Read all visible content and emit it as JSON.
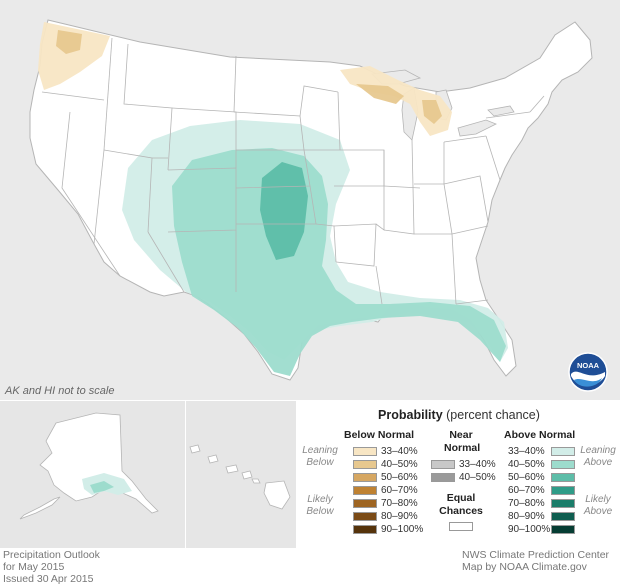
{
  "map": {
    "scale_note": "AK and HI not to scale",
    "logo_text": "NOAA",
    "colors": {
      "background": "#eaeaea",
      "land": "#ffffff",
      "border": "#b5b5b5",
      "below_33_40": "#f8e6c4",
      "below_40_50": "#e7c88f",
      "above_33_40": "#d2ede8",
      "above_40_50": "#9ddccd",
      "above_50_60": "#5dbda8"
    }
  },
  "legend": {
    "title_bold": "Probability",
    "title_rest": "(percent chance)",
    "below": {
      "heading": "Below Normal",
      "side_leaning": [
        "Leaning",
        "Below"
      ],
      "side_likely": [
        "Likely",
        "Below"
      ],
      "rows": [
        {
          "label": "33–40%",
          "color": "#f8e6c4"
        },
        {
          "label": "40–50%",
          "color": "#e7c88f"
        },
        {
          "label": "50–60%",
          "color": "#d6a762"
        },
        {
          "label": "60–70%",
          "color": "#bf8232"
        },
        {
          "label": "70–80%",
          "color": "#9e6522"
        },
        {
          "label": "80–90%",
          "color": "#7b4b16"
        },
        {
          "label": "90–100%",
          "color": "#55330b"
        }
      ]
    },
    "near": {
      "heading": [
        "Near",
        "Normal"
      ],
      "rows": [
        {
          "label": "33–40%",
          "color": "#c8c8c8"
        },
        {
          "label": "40–50%",
          "color": "#9a9a9a"
        }
      ]
    },
    "equal": {
      "heading": [
        "Equal",
        "Chances"
      ],
      "color": "#ffffff"
    },
    "above": {
      "heading": "Above Normal",
      "side_leaning": [
        "Leaning",
        "Above"
      ],
      "side_likely": [
        "Likely",
        "Above"
      ],
      "rows": [
        {
          "label": "33–40%",
          "color": "#d2ede8"
        },
        {
          "label": "40–50%",
          "color": "#9ddccd"
        },
        {
          "label": "50–60%",
          "color": "#5dbda8"
        },
        {
          "label": "60–70%",
          "color": "#2f9c88"
        },
        {
          "label": "70–80%",
          "color": "#1b7d6a"
        },
        {
          "label": "80–90%",
          "color": "#0f5e50"
        },
        {
          "label": "90–100%",
          "color": "#063d33"
        }
      ]
    }
  },
  "footer": {
    "left": [
      "Precipitation Outlook",
      "for May 2015",
      "Issued 30 Apr 2015"
    ],
    "right": [
      "NWS Climate Prediction Center",
      "Map by NOAA Climate.gov"
    ]
  }
}
